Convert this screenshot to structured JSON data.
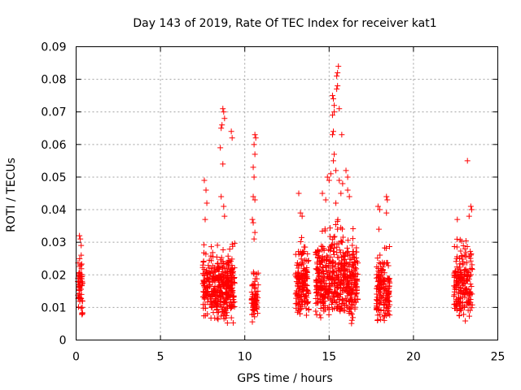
{
  "chart_data": {
    "type": "scatter",
    "title": "Day 143 of 2019, Rate Of TEC Index for receiver kat1",
    "xlabel": "GPS time / hours",
    "ylabel": "ROTI / TECUs",
    "xlim": [
      0,
      25
    ],
    "ylim": [
      0,
      0.09
    ],
    "x_ticks": [
      "0",
      "5",
      "10",
      "15",
      "20",
      "25"
    ],
    "y_ticks": [
      "0",
      "0.01",
      "0.02",
      "0.03",
      "0.04",
      "0.05",
      "0.06",
      "0.07",
      "0.08",
      "0.09"
    ],
    "grid": true,
    "marker": "+",
    "color": "#ff0000",
    "clusters": [
      {
        "x_range": [
          0.1,
          0.4
        ],
        "y_range": [
          0.006,
          0.032
        ],
        "count": 60
      },
      {
        "x_range": [
          7.5,
          8.3
        ],
        "y_range": [
          0.005,
          0.033
        ],
        "count": 140
      },
      {
        "x_range": [
          8.3,
          9.4
        ],
        "y_range": [
          0.004,
          0.034
        ],
        "count": 260
      },
      {
        "x_range": [
          10.4,
          10.8
        ],
        "y_range": [
          0.005,
          0.025
        ],
        "count": 70
      },
      {
        "x_range": [
          13.0,
          13.8
        ],
        "y_range": [
          0.005,
          0.035
        ],
        "count": 170
      },
      {
        "x_range": [
          14.2,
          16.7
        ],
        "y_range": [
          0.004,
          0.04
        ],
        "count": 520
      },
      {
        "x_range": [
          17.8,
          18.6
        ],
        "y_range": [
          0.004,
          0.032
        ],
        "count": 160
      },
      {
        "x_range": [
          22.4,
          23.5
        ],
        "y_range": [
          0.005,
          0.036
        ],
        "count": 190
      }
    ],
    "peaks": [
      {
        "x": 0.2,
        "y": 0.032
      },
      {
        "x": 0.25,
        "y": 0.031
      },
      {
        "x": 0.3,
        "y": 0.029
      },
      {
        "x": 7.6,
        "y": 0.049
      },
      {
        "x": 7.7,
        "y": 0.046
      },
      {
        "x": 7.75,
        "y": 0.042
      },
      {
        "x": 7.65,
        "y": 0.037
      },
      {
        "x": 8.6,
        "y": 0.065
      },
      {
        "x": 8.7,
        "y": 0.071
      },
      {
        "x": 8.75,
        "y": 0.07
      },
      {
        "x": 8.8,
        "y": 0.068
      },
      {
        "x": 8.65,
        "y": 0.066
      },
      {
        "x": 8.55,
        "y": 0.059
      },
      {
        "x": 8.7,
        "y": 0.054
      },
      {
        "x": 8.6,
        "y": 0.044
      },
      {
        "x": 8.75,
        "y": 0.041
      },
      {
        "x": 8.8,
        "y": 0.038
      },
      {
        "x": 9.2,
        "y": 0.064
      },
      {
        "x": 9.25,
        "y": 0.062
      },
      {
        "x": 10.6,
        "y": 0.063
      },
      {
        "x": 10.65,
        "y": 0.062
      },
      {
        "x": 10.55,
        "y": 0.06
      },
      {
        "x": 10.6,
        "y": 0.057
      },
      {
        "x": 10.5,
        "y": 0.053
      },
      {
        "x": 10.55,
        "y": 0.05
      },
      {
        "x": 10.5,
        "y": 0.044
      },
      {
        "x": 10.6,
        "y": 0.043
      },
      {
        "x": 10.45,
        "y": 0.037
      },
      {
        "x": 10.5,
        "y": 0.036
      },
      {
        "x": 10.6,
        "y": 0.033
      },
      {
        "x": 10.55,
        "y": 0.031
      },
      {
        "x": 13.2,
        "y": 0.045
      },
      {
        "x": 13.3,
        "y": 0.039
      },
      {
        "x": 13.4,
        "y": 0.038
      },
      {
        "x": 14.6,
        "y": 0.045
      },
      {
        "x": 14.8,
        "y": 0.043
      },
      {
        "x": 14.9,
        "y": 0.05
      },
      {
        "x": 15.0,
        "y": 0.049
      },
      {
        "x": 15.1,
        "y": 0.051
      },
      {
        "x": 15.2,
        "y": 0.075
      },
      {
        "x": 15.25,
        "y": 0.074
      },
      {
        "x": 15.3,
        "y": 0.072
      },
      {
        "x": 15.2,
        "y": 0.069
      },
      {
        "x": 15.3,
        "y": 0.07
      },
      {
        "x": 15.45,
        "y": 0.081
      },
      {
        "x": 15.5,
        "y": 0.082
      },
      {
        "x": 15.55,
        "y": 0.084
      },
      {
        "x": 15.5,
        "y": 0.078
      },
      {
        "x": 15.45,
        "y": 0.077
      },
      {
        "x": 15.6,
        "y": 0.071
      },
      {
        "x": 15.25,
        "y": 0.064
      },
      {
        "x": 15.2,
        "y": 0.063
      },
      {
        "x": 15.3,
        "y": 0.057
      },
      {
        "x": 15.25,
        "y": 0.055
      },
      {
        "x": 15.75,
        "y": 0.063
      },
      {
        "x": 15.4,
        "y": 0.052
      },
      {
        "x": 15.6,
        "y": 0.049
      },
      {
        "x": 15.8,
        "y": 0.048
      },
      {
        "x": 16.0,
        "y": 0.052
      },
      {
        "x": 16.1,
        "y": 0.05
      },
      {
        "x": 16.1,
        "y": 0.046
      },
      {
        "x": 16.2,
        "y": 0.044
      },
      {
        "x": 15.7,
        "y": 0.045
      },
      {
        "x": 15.4,
        "y": 0.042
      },
      {
        "x": 17.9,
        "y": 0.041
      },
      {
        "x": 18.0,
        "y": 0.04
      },
      {
        "x": 18.4,
        "y": 0.044
      },
      {
        "x": 18.45,
        "y": 0.043
      },
      {
        "x": 18.4,
        "y": 0.039
      },
      {
        "x": 17.95,
        "y": 0.034
      },
      {
        "x": 23.2,
        "y": 0.055
      },
      {
        "x": 23.4,
        "y": 0.041
      },
      {
        "x": 23.45,
        "y": 0.04
      },
      {
        "x": 23.3,
        "y": 0.038
      },
      {
        "x": 22.6,
        "y": 0.037
      }
    ]
  }
}
